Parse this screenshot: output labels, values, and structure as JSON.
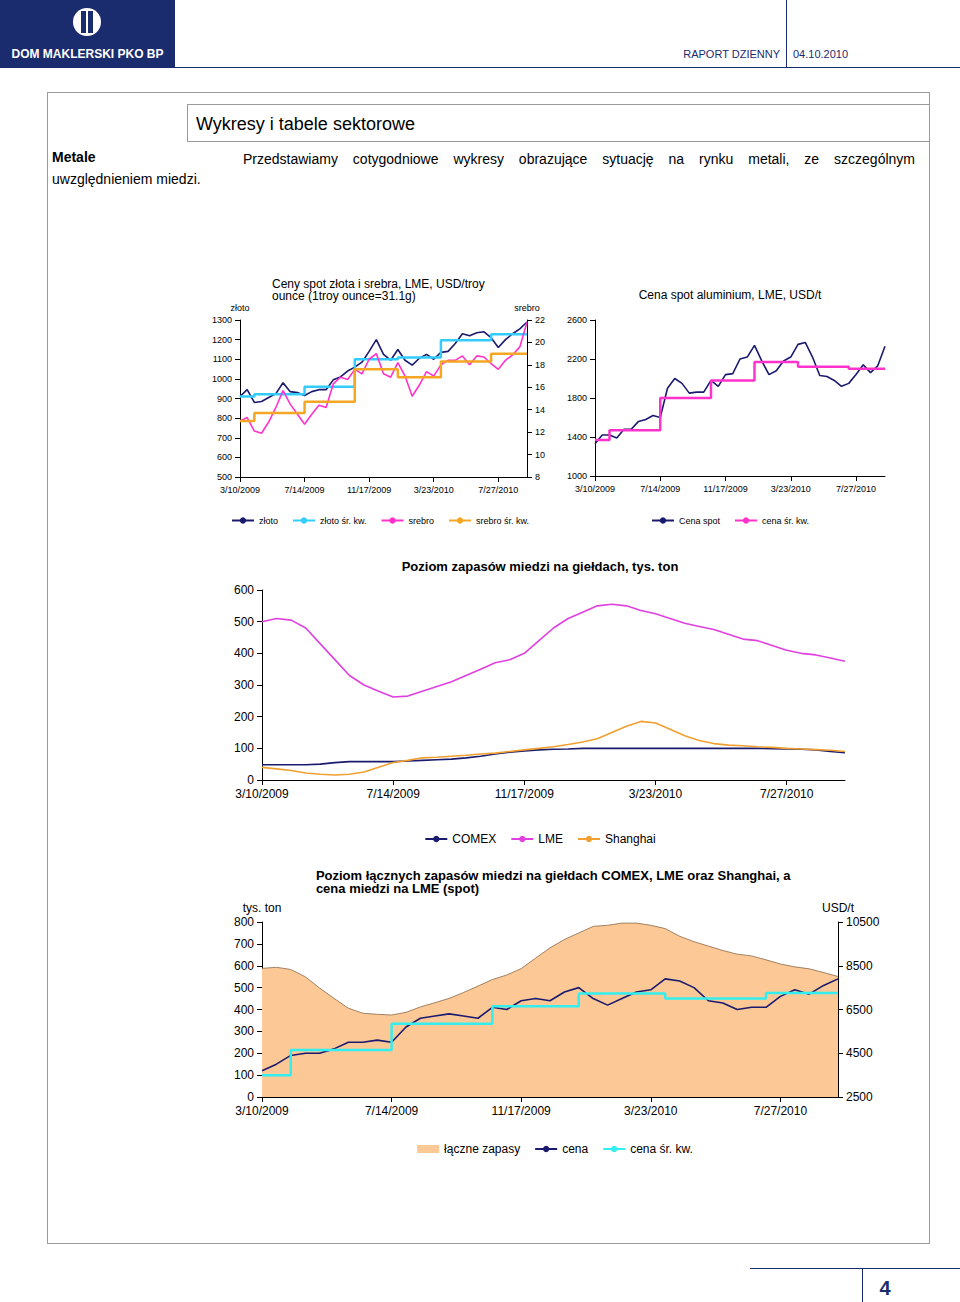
{
  "header": {
    "brand": "DOM MAKLERSKI PKO BP",
    "report": "RAPORT DZIENNY",
    "date": "04.10.2010"
  },
  "section": {
    "title": "Wykresy i tabele sektorowe",
    "label": "Metale",
    "text": "Przedstawiamy cotygodniowe wykresy obrazujące sytuację na rynku metali, ze szczególnym uwzględnieniem miedzi."
  },
  "chart_data": [
    {
      "type": "line",
      "title": "Ceny spot złota i srebra, LME, USD/troy ounce (1troy ounce=31.1g)",
      "ylabel": "złoto",
      "y2label": "srebro",
      "categories": [
        "3/10/2009",
        null,
        null,
        null,
        null,
        null,
        null,
        null,
        null,
        "7/14/2009",
        null,
        null,
        null,
        null,
        null,
        null,
        null,
        null,
        "11/17/2009",
        null,
        null,
        null,
        null,
        null,
        null,
        null,
        null,
        "3/23/2010",
        null,
        null,
        null,
        null,
        null,
        null,
        null,
        null,
        "7/27/2010",
        null,
        null,
        null,
        null
      ],
      "ylim": [
        500,
        1300
      ],
      "yticks": [
        500,
        600,
        700,
        800,
        900,
        1000,
        1100,
        1200,
        1300
      ],
      "y2lim": [
        8,
        22
      ],
      "y2ticks": [
        8,
        10,
        12,
        14,
        16,
        18,
        20,
        22
      ],
      "grid": false,
      "legend": "bottom",
      "series": [
        {
          "name": "złoto",
          "color": "#1a1a6e",
          "values": [
            910,
            945,
            880,
            885,
            905,
            925,
            980,
            935,
            930,
            915,
            935,
            945,
            945,
            995,
            1010,
            1040,
            1060,
            1085,
            1140,
            1200,
            1125,
            1095,
            1150,
            1095,
            1070,
            1105,
            1125,
            1100,
            1135,
            1140,
            1180,
            1230,
            1220,
            1235,
            1240,
            1210,
            1160,
            1200,
            1230,
            1255,
            1290
          ]
        },
        {
          "name": "złoto śr. kw.",
          "color": "#33ccff",
          "line_style": "step",
          "values": [
            910,
            910,
            922,
            922,
            922,
            922,
            922,
            922,
            922,
            960,
            960,
            960,
            960,
            960,
            960,
            960,
            1100,
            1100,
            1100,
            1100,
            1100,
            1100,
            1109,
            1109,
            1109,
            1109,
            1109,
            1109,
            1197,
            1197,
            1197,
            1197,
            1197,
            1197,
            1197,
            1227,
            1227,
            1227,
            1227,
            1227,
            1227
          ]
        },
        {
          "name": "srebro",
          "color": "#ff33cc",
          "axis": "y2",
          "values": [
            13.0,
            13.3,
            12.1,
            11.9,
            12.9,
            14.2,
            15.7,
            14.5,
            13.6,
            12.7,
            13.6,
            14.4,
            14.2,
            16.3,
            16.9,
            16.7,
            17.6,
            17.2,
            18.5,
            19.0,
            17.2,
            16.9,
            18.2,
            17.0,
            15.2,
            16.2,
            17.4,
            17.0,
            18.0,
            18.4,
            18.4,
            18.8,
            18.0,
            18.8,
            18.7,
            18.1,
            17.6,
            18.4,
            18.9,
            19.6,
            21.8
          ]
        },
        {
          "name": "srebro śr. kw.",
          "color": "#f5a623",
          "axis": "y2",
          "line_style": "step",
          "values": [
            13.0,
            13.0,
            13.7,
            13.7,
            13.7,
            13.7,
            13.7,
            13.7,
            13.7,
            14.7,
            14.7,
            14.7,
            14.7,
            14.7,
            14.7,
            14.7,
            17.6,
            17.6,
            17.6,
            17.6,
            17.6,
            17.6,
            16.9,
            16.9,
            16.9,
            16.9,
            16.9,
            16.9,
            18.3,
            18.3,
            18.3,
            18.3,
            18.3,
            18.3,
            18.3,
            19.0,
            19.0,
            19.0,
            19.0,
            19.0,
            19.0
          ]
        }
      ]
    },
    {
      "type": "line",
      "title": "Cena spot aluminium, LME, USD/t",
      "categories": [
        "3/10/2009",
        null,
        null,
        null,
        null,
        null,
        null,
        null,
        null,
        "7/14/2009",
        null,
        null,
        null,
        null,
        null,
        null,
        null,
        null,
        "11/17/2009",
        null,
        null,
        null,
        null,
        null,
        null,
        null,
        null,
        "3/23/2010",
        null,
        null,
        null,
        null,
        null,
        null,
        null,
        null,
        "7/27/2010",
        null,
        null,
        null,
        null
      ],
      "ylim": [
        1000,
        2600
      ],
      "yticks": [
        1000,
        1400,
        1800,
        2200,
        2600
      ],
      "grid": false,
      "legend": "bottom",
      "series": [
        {
          "name": "Cena spot",
          "color": "#1a1a6e",
          "values": [
            1330,
            1420,
            1420,
            1390,
            1480,
            1480,
            1560,
            1580,
            1620,
            1600,
            1900,
            2000,
            1950,
            1850,
            1860,
            1860,
            1980,
            1920,
            2040,
            2050,
            2200,
            2220,
            2340,
            2180,
            2040,
            2080,
            2180,
            2220,
            2350,
            2370,
            2220,
            2030,
            2020,
            1980,
            1920,
            1950,
            2040,
            2140,
            2060,
            2130,
            2330
          ]
        },
        {
          "name": "cena śr. kw.",
          "color": "#ff33cc",
          "line_style": "step",
          "values": [
            1370,
            1370,
            1470,
            1470,
            1470,
            1470,
            1470,
            1470,
            1470,
            1800,
            1800,
            1800,
            1800,
            1800,
            1800,
            1800,
            1980,
            1980,
            1980,
            1980,
            1980,
            1980,
            2170,
            2170,
            2170,
            2170,
            2170,
            2170,
            2120,
            2120,
            2120,
            2120,
            2120,
            2120,
            2120,
            2100,
            2100,
            2100,
            2100,
            2100,
            2100
          ]
        }
      ]
    },
    {
      "type": "line",
      "title": "Poziom zapasów miedzi na giełdach, tys. ton",
      "categories": [
        "3/10/2009",
        null,
        null,
        null,
        null,
        null,
        null,
        null,
        null,
        "7/14/2009",
        null,
        null,
        null,
        null,
        null,
        null,
        null,
        null,
        "11/17/2009",
        null,
        null,
        null,
        null,
        null,
        null,
        null,
        null,
        "3/23/2010",
        null,
        null,
        null,
        null,
        null,
        null,
        null,
        null,
        "7/27/2010",
        null,
        null,
        null,
        null
      ],
      "ylim": [
        0,
        600
      ],
      "yticks": [
        0,
        100,
        200,
        300,
        400,
        500,
        600
      ],
      "grid": false,
      "legend": "bottom",
      "series": [
        {
          "name": "COMEX",
          "color": "#1a1a6e",
          "values": [
            48,
            48,
            48,
            48,
            50,
            55,
            58,
            58,
            58,
            58,
            60,
            62,
            64,
            66,
            70,
            75,
            82,
            88,
            92,
            95,
            97,
            98,
            100,
            100,
            100,
            100,
            100,
            100,
            100,
            100,
            100,
            100,
            100,
            100,
            100,
            99,
            98,
            97,
            95,
            90,
            86
          ]
        },
        {
          "name": "LME",
          "color": "#e040e0",
          "values": [
            500,
            510,
            505,
            480,
            430,
            380,
            330,
            300,
            280,
            262,
            265,
            280,
            295,
            310,
            330,
            350,
            370,
            380,
            400,
            440,
            480,
            510,
            530,
            550,
            555,
            550,
            535,
            525,
            510,
            495,
            485,
            475,
            460,
            445,
            440,
            425,
            410,
            400,
            395,
            385,
            375
          ]
        },
        {
          "name": "Shanghai",
          "color": "#f0a030",
          "values": [
            40,
            35,
            30,
            22,
            18,
            16,
            18,
            25,
            40,
            55,
            62,
            70,
            72,
            75,
            78,
            82,
            85,
            90,
            95,
            100,
            105,
            112,
            120,
            130,
            150,
            170,
            185,
            180,
            160,
            140,
            125,
            115,
            110,
            108,
            105,
            103,
            100,
            98,
            96,
            94,
            90
          ]
        }
      ]
    },
    {
      "type": "line",
      "title": "Poziom łącznych zapasów miedzi na giełdach COMEX, LME oraz Shanghai, a cena miedzi na LME (spot)",
      "ylabel": "tys. ton",
      "y2label": "USD/t",
      "categories": [
        "3/10/2009",
        null,
        null,
        null,
        null,
        null,
        null,
        null,
        null,
        "7/14/2009",
        null,
        null,
        null,
        null,
        null,
        null,
        null,
        null,
        "11/17/2009",
        null,
        null,
        null,
        null,
        null,
        null,
        null,
        null,
        "3/23/2010",
        null,
        null,
        null,
        null,
        null,
        null,
        null,
        null,
        "7/27/2010",
        null,
        null,
        null,
        null
      ],
      "ylim": [
        0,
        800
      ],
      "yticks": [
        0,
        100,
        200,
        300,
        400,
        500,
        600,
        700,
        800
      ],
      "y2lim": [
        2500,
        10500
      ],
      "y2ticks": [
        2500,
        4500,
        6500,
        8500,
        10500
      ],
      "grid": false,
      "legend": "bottom",
      "series": [
        {
          "name": "łączne zapasy",
          "type": "area",
          "color": "#fcc896",
          "values": [
            588,
            593,
            583,
            550,
            498,
            451,
            406,
            383,
            378,
            375,
            387,
            412,
            431,
            451,
            478,
            507,
            537,
            558,
            587,
            635,
            682,
            720,
            750,
            780,
            785,
            795,
            795,
            785,
            770,
            735,
            710,
            690,
            670,
            653,
            645,
            627,
            608,
            595,
            586,
            569,
            551
          ]
        },
        {
          "name": "cena",
          "color": "#1a1a6e",
          "axis": "y2",
          "values": [
            3700,
            4000,
            4400,
            4500,
            4500,
            4700,
            5000,
            5000,
            5100,
            5000,
            5700,
            6100,
            6200,
            6300,
            6200,
            6100,
            6600,
            6500,
            6900,
            7000,
            6900,
            7300,
            7500,
            7000,
            6700,
            7000,
            7300,
            7400,
            7900,
            7800,
            7500,
            6900,
            6800,
            6500,
            6600,
            6600,
            7100,
            7400,
            7200,
            7600,
            7900
          ]
        },
        {
          "name": "cena śr. kw.",
          "color": "#33eeee",
          "axis": "y2",
          "line_style": "step",
          "values": [
            3500,
            3500,
            4650,
            4650,
            4650,
            4650,
            4650,
            4650,
            4650,
            5850,
            5850,
            5850,
            5850,
            5850,
            5850,
            5850,
            6650,
            6650,
            6650,
            6650,
            6650,
            6650,
            7230,
            7230,
            7230,
            7230,
            7230,
            7230,
            7000,
            7000,
            7000,
            7000,
            7000,
            7000,
            7000,
            7250,
            7250,
            7250,
            7250,
            7250,
            7250
          ]
        }
      ]
    }
  ],
  "page_number": 4
}
